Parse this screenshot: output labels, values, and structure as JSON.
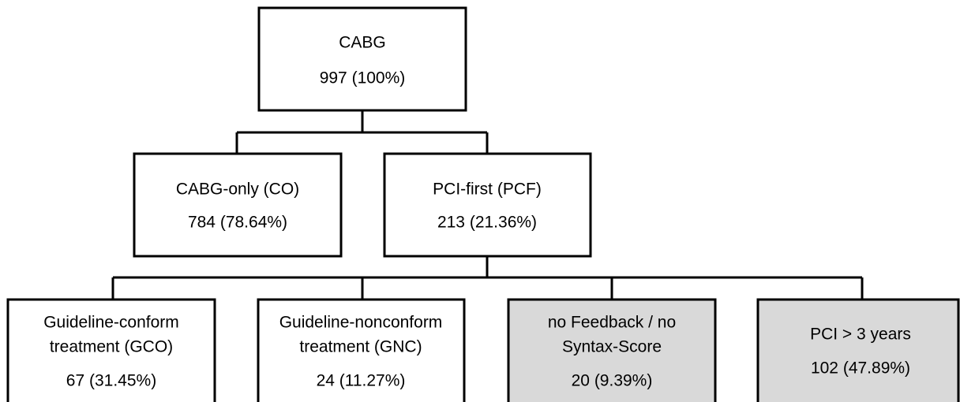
{
  "nodes": [
    {
      "lines": [
        "CABG",
        "997 (100%)"
      ]
    },
    {
      "lines": [
        "CABG-only (CO)",
        "784 (78.64%)"
      ]
    },
    {
      "lines": [
        "PCI-first (PCF)",
        "213 (21.36%)"
      ]
    },
    {
      "lines": [
        "Guideline-conform",
        "treatment (GCO)",
        "67 (31.45%)"
      ]
    },
    {
      "lines": [
        "Guideline-nonconform",
        "treatment (GNC)",
        "24 (11.27%)"
      ]
    },
    {
      "lines": [
        "no Feedback / no",
        "Syntax-Score",
        "20 (9.39%)"
      ]
    },
    {
      "lines": [
        "PCI > 3 years",
        "102 (47.89%)"
      ]
    }
  ]
}
